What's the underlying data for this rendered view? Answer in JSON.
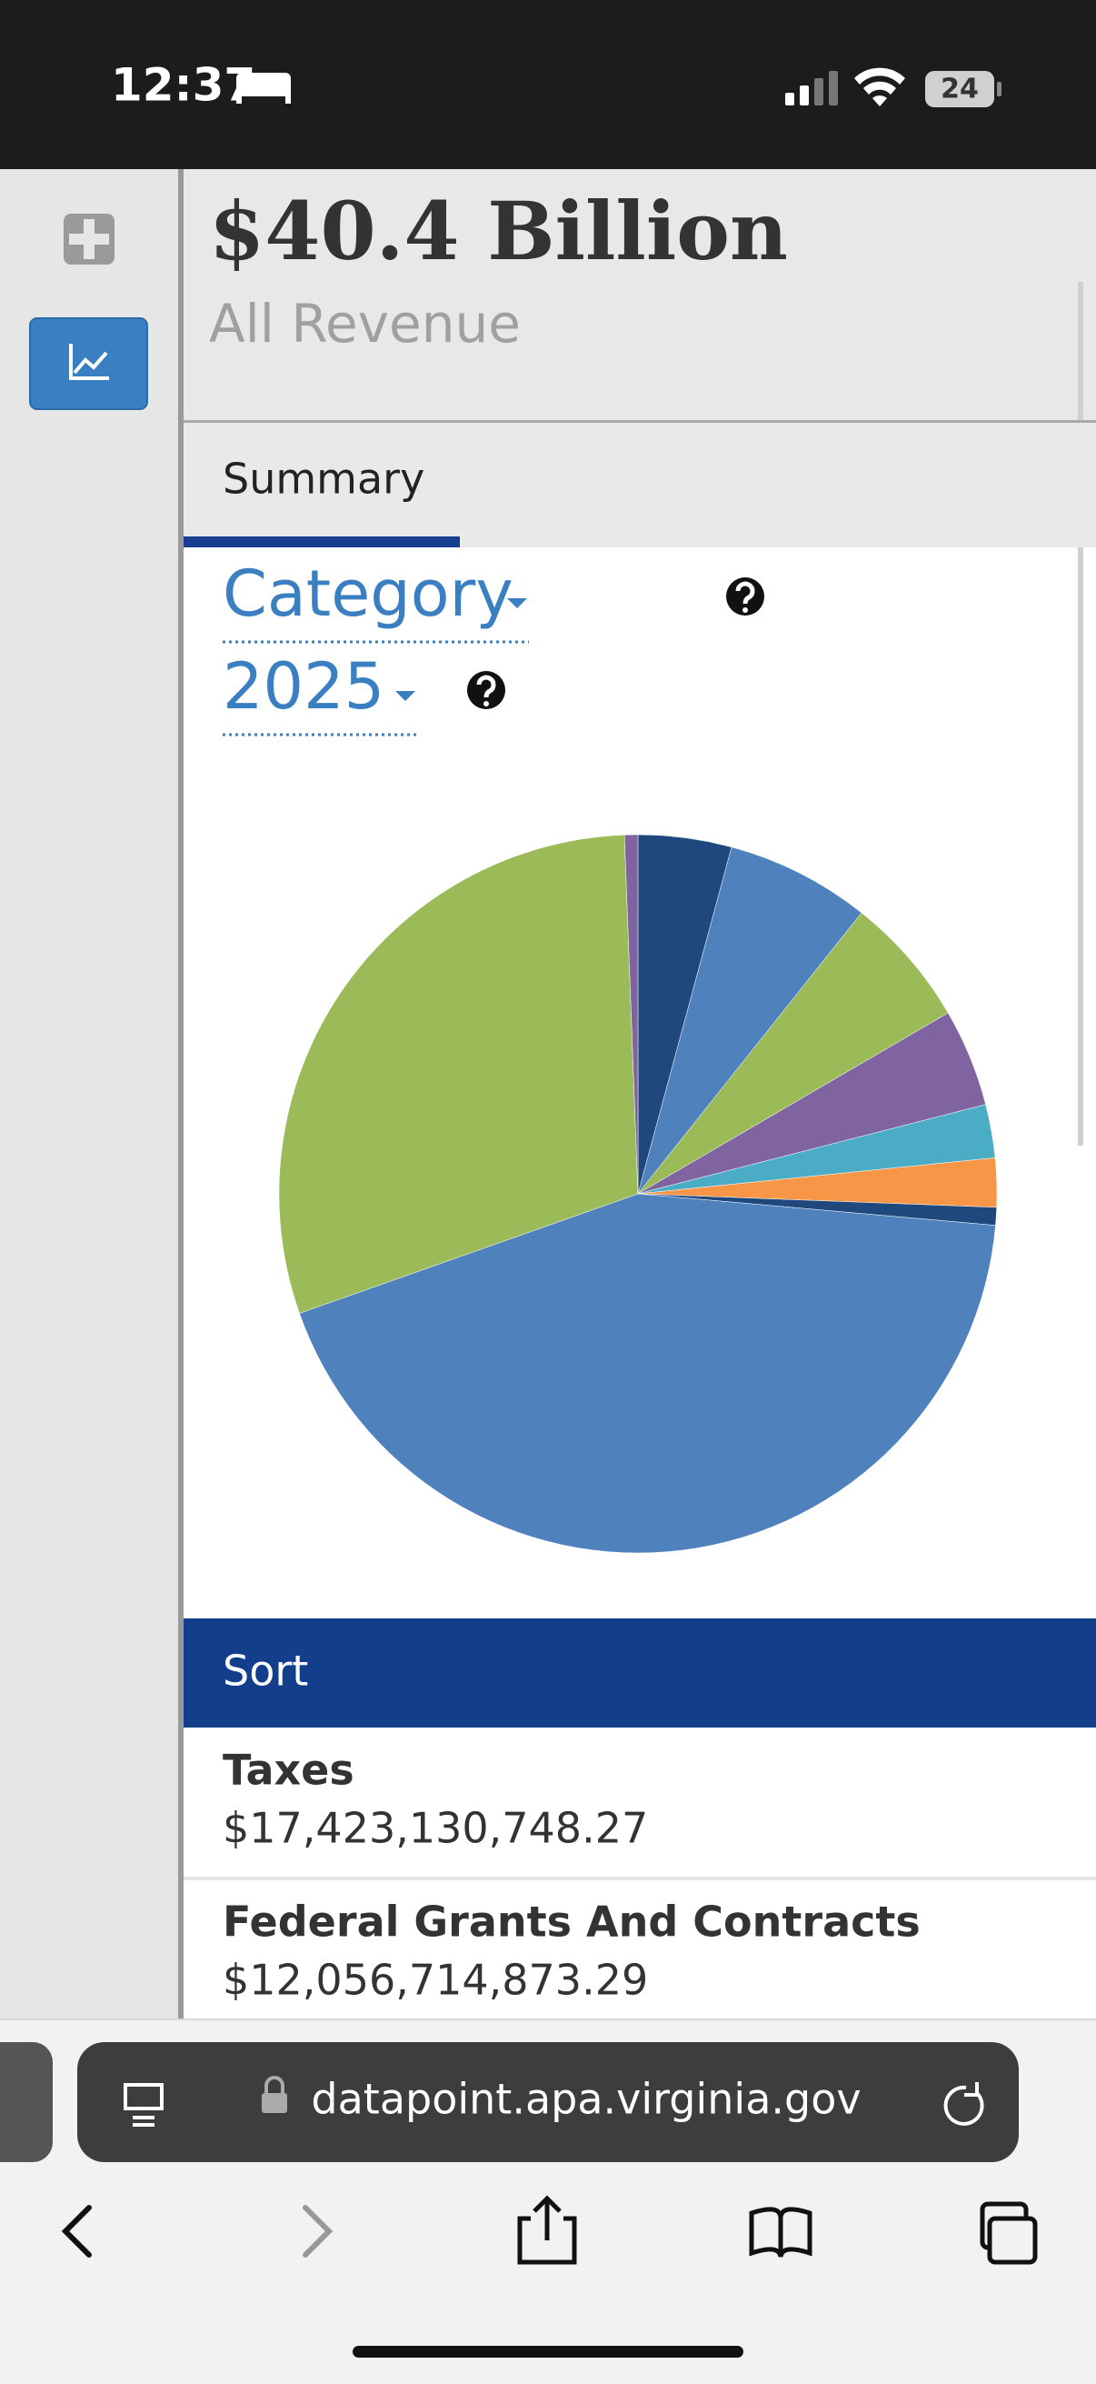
{
  "status_bar": {
    "time": "12:37",
    "battery": "24"
  },
  "header": {
    "title": "$40.4 Billion",
    "subtitle": "All Revenue"
  },
  "tabs": [
    "Summary"
  ],
  "filters": [
    "Category",
    "2025"
  ],
  "chart_data": {
    "type": "pie",
    "start_angle": 0,
    "values": [
      4.2,
      6.5,
      5.9,
      4.4,
      2.4,
      2.2,
      0.8,
      43.2,
      29.8,
      0.6
    ],
    "colors": [
      "#1f497d",
      "#4f81bd",
      "#9bbb59",
      "#8064a2",
      "#4bacc6",
      "#f79646",
      "#1f497d",
      "#4f81bd",
      "#9bbb59",
      "#8064a2"
    ]
  },
  "list": {
    "header": "Sort",
    "items": [
      {
        "name": "Taxes",
        "amount": "$17,423,130,748.27"
      },
      {
        "name": "Federal Grants And Contracts",
        "amount": "$12,056,714,873.29"
      }
    ]
  },
  "browser": {
    "url": "datapoint.apa.virginia.gov"
  }
}
